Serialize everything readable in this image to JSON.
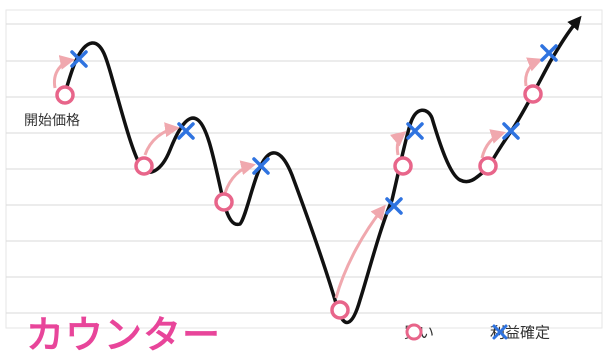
{
  "diagram": {
    "start_label": "開始価格",
    "caption": "カウンター",
    "legend": {
      "buy_label": "買い",
      "profit_label": "利益確定"
    },
    "colors": {
      "buy_marker": "#e8658a",
      "profit_marker": "#2f73e0",
      "arrow": "#f0a8ae",
      "caption": "#e8459a",
      "price_line": "#111111",
      "grid": "#d9d9d9"
    },
    "icons": {
      "buy": "circle-icon",
      "profit": "cross-icon"
    }
  }
}
